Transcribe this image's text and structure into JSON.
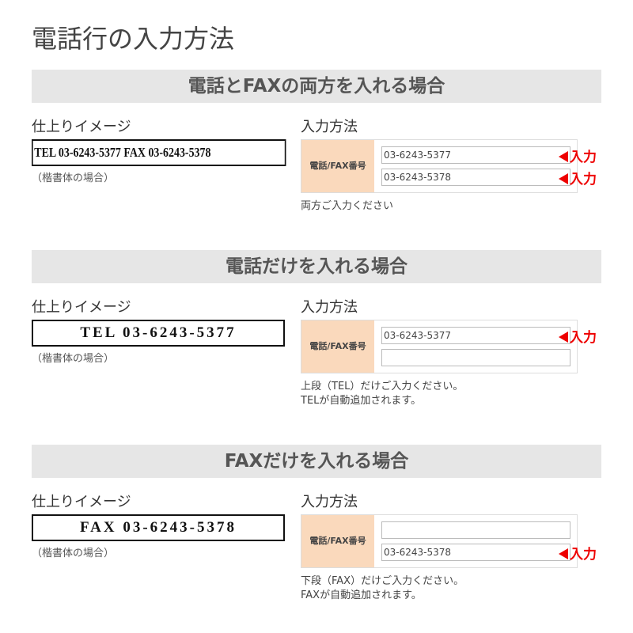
{
  "title": "電話行の入力方法",
  "sections": [
    {
      "header": "電話とFAXの両方を入れる場合",
      "preview_label": "仕上りイメージ",
      "preview": "TEL 03-6243-5377 FAX 03-6243-5378",
      "preview_note": "（楷書体の場合）",
      "input_label": "入力方法",
      "field_label": "電話/FAX番号",
      "top_field": {
        "value": "03-6243-5377",
        "marker": "入力"
      },
      "bottom_field": {
        "value": "03-6243-5378",
        "marker": "入力"
      },
      "notes": [
        "両方ご入力ください"
      ]
    },
    {
      "header": "電話だけを入れる場合",
      "preview_label": "仕上りイメージ",
      "preview": "TEL 03-6243-5377",
      "preview_note": "（楷書体の場合）",
      "input_label": "入力方法",
      "field_label": "電話/FAX番号",
      "top_field": {
        "value": "03-6243-5377",
        "marker": "入力"
      },
      "notes": [
        "上段（TEL）だけご入力ください。",
        "TELが自動追加されます。"
      ]
    },
    {
      "header": "FAXだけを入れる場合",
      "preview_label": "仕上りイメージ",
      "preview": "FAX 03-6243-5378",
      "preview_note": "（楷書体の場合）",
      "input_label": "入力方法",
      "field_label": "電話/FAX番号",
      "bottom_field": {
        "value": "03-6243-5378",
        "marker": "入力"
      },
      "notes": [
        "下段（FAX）だけご入力ください。",
        "FAXが自動追加されます。"
      ]
    }
  ]
}
